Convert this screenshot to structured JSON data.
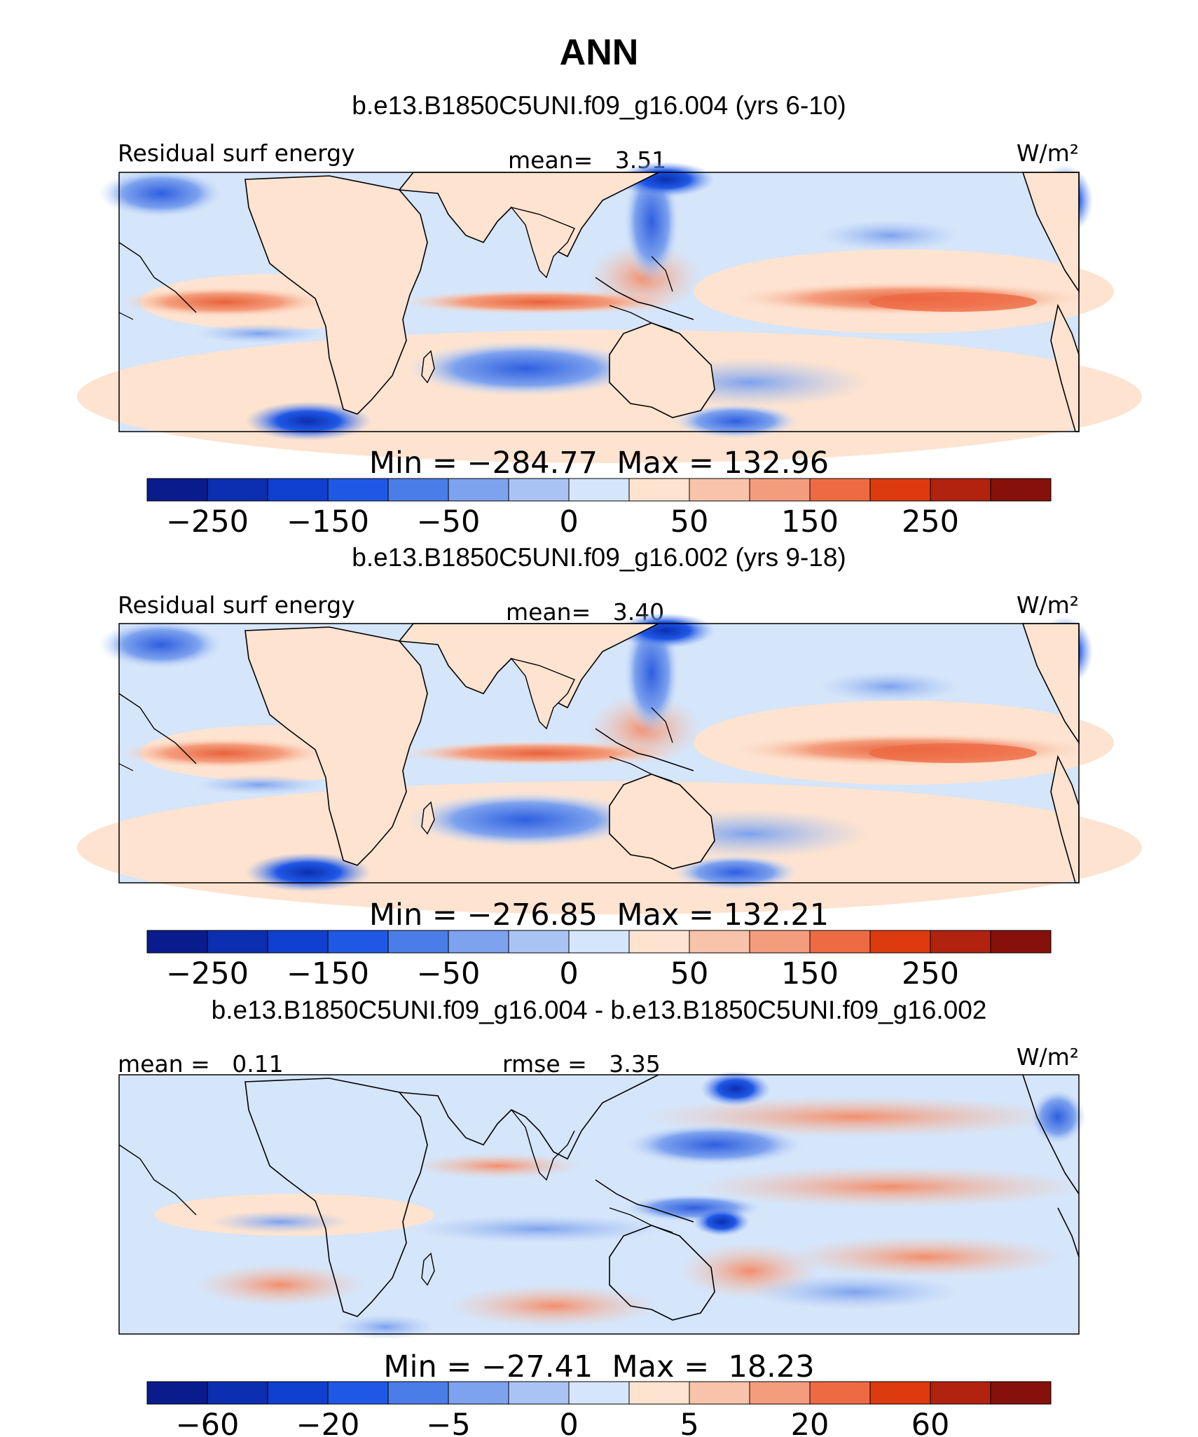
{
  "chart_data": {
    "type": "heatmap",
    "title": "ANN",
    "panels": [
      {
        "subtitle": "b.e13.B1850C5UNI.f09_g16.004 (yrs 6-10)",
        "left_label": "Residual surf energy",
        "center_label": "mean=   3.51",
        "units": "W/m²",
        "stats": "Min = −284.77  Max = 132.96",
        "colorbar_ticks": [
          "−250",
          "−150",
          "−50",
          "0",
          "50",
          "150",
          "250"
        ],
        "colorbar_levels": [
          -300,
          -250,
          -200,
          -150,
          -100,
          -50,
          -25,
          0,
          25,
          50,
          100,
          150,
          200,
          250,
          300
        ],
        "mean": 3.51,
        "min": -284.77,
        "max": 132.96
      },
      {
        "subtitle": "b.e13.B1850C5UNI.f09_g16.002 (yrs 9-18)",
        "left_label": "Residual surf energy",
        "center_label": "mean=   3.40",
        "units": "W/m²",
        "stats": "Min = −276.85  Max = 132.21",
        "colorbar_ticks": [
          "−250",
          "−150",
          "−50",
          "0",
          "50",
          "150",
          "250"
        ],
        "colorbar_levels": [
          -300,
          -250,
          -200,
          -150,
          -100,
          -50,
          -25,
          0,
          25,
          50,
          100,
          150,
          200,
          250,
          300
        ],
        "mean": 3.4,
        "min": -276.85,
        "max": 132.21
      },
      {
        "subtitle": "b.e13.B1850C5UNI.f09_g16.004 - b.e13.B1850C5UNI.f09_g16.002",
        "left_label": "mean =   0.11",
        "center_label": "rmse =   3.35",
        "units": "W/m²",
        "stats": "Min = −27.41  Max =  18.23",
        "colorbar_ticks": [
          "−60",
          "−20",
          "−5",
          "0",
          "5",
          "20",
          "60"
        ],
        "colorbar_levels": [
          -80,
          -60,
          -40,
          -20,
          -10,
          -5,
          -2,
          0,
          2,
          5,
          10,
          20,
          40,
          60,
          80
        ],
        "mean": 0.11,
        "rmse": 3.35,
        "min": -27.41,
        "max": 18.23
      }
    ],
    "colormap": [
      "#0a1b8c",
      "#0b2fb0",
      "#1040d0",
      "#2058e6",
      "#4a7de8",
      "#7da2ee",
      "#a9c4f4",
      "#d5e5fa",
      "#fde3d0",
      "#f8c3aa",
      "#f49d7d",
      "#ee6a43",
      "#dd3a10",
      "#b1220f",
      "#86110a"
    ]
  }
}
